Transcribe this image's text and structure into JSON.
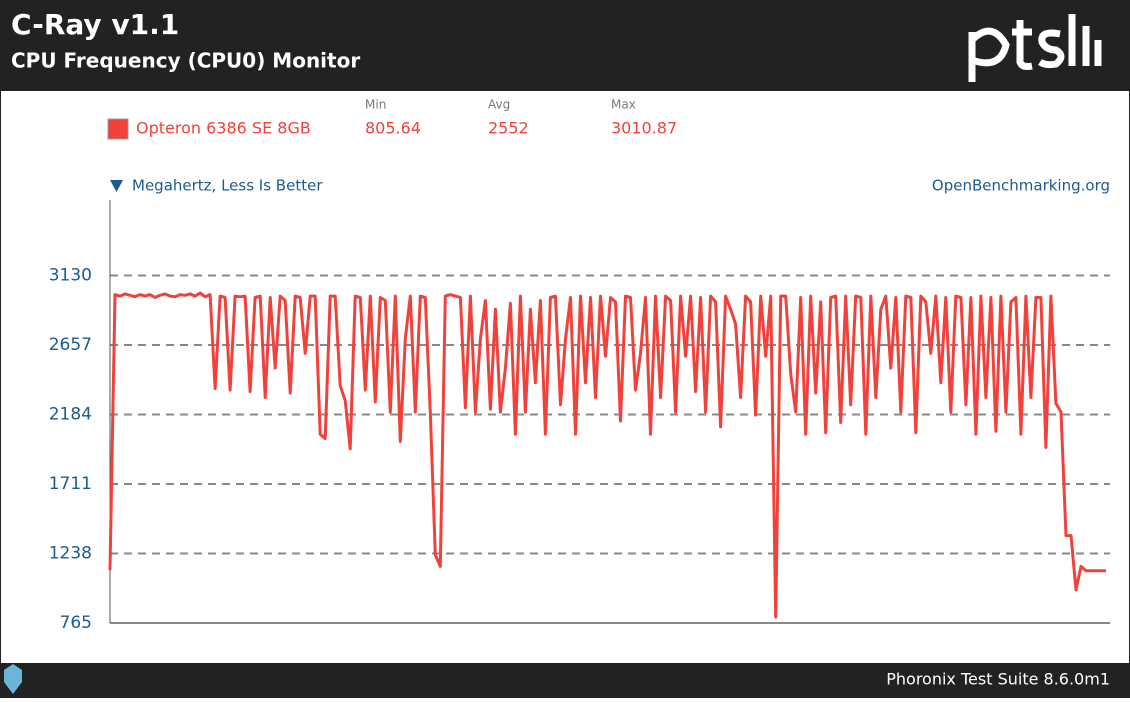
{
  "chart_data": {
    "type": "line",
    "title": "C-Ray v1.1",
    "subtitle": "CPU Frequency (CPU0) Monitor",
    "y_label": "Megahertz, Less Is Better",
    "source": "OpenBenchmarking.org",
    "footer": "Phoronix Test Suite 8.6.0m1",
    "stats_labels": [
      "Min",
      "Avg",
      "Max"
    ],
    "ylim": [
      765,
      3603
    ],
    "yticks": [
      765,
      1238,
      1711,
      2184,
      2657,
      3130
    ],
    "grid": true,
    "series": [
      {
        "name": "Opteron 6386 SE 8GB",
        "color": "#f0413b",
        "stats": [
          805.64,
          2552,
          3010.87
        ],
        "values": [
          1126,
          3000,
          2990,
          3005,
          2995,
          2985,
          3000,
          2990,
          3000,
          2980,
          2995,
          3005,
          2990,
          2985,
          3000,
          2995,
          3005,
          2990,
          3010.87,
          2985,
          3000,
          2360,
          2990,
          2980,
          2350,
          2990,
          2985,
          2990,
          2340,
          2980,
          2990,
          2300,
          2980,
          2500,
          2990,
          2960,
          2330,
          2990,
          2980,
          2600,
          2990,
          2990,
          2050,
          2020,
          2990,
          2990,
          2380,
          2280,
          1950,
          2990,
          2980,
          2350,
          2990,
          2270,
          2980,
          2960,
          2200,
          2990,
          2000,
          2700,
          2990,
          2200,
          2990,
          2980,
          2200,
          1230,
          1150,
          2990,
          3000,
          2990,
          2980,
          2230,
          2990,
          2200,
          2700,
          2960,
          2220,
          2900,
          2200,
          2500,
          2940,
          2050,
          2990,
          2200,
          2900,
          2400,
          2960,
          2050,
          2980,
          2990,
          2250,
          2700,
          2980,
          2050,
          2990,
          2400,
          2980,
          2300,
          2990,
          2580,
          2980,
          2950,
          2140,
          2990,
          2980,
          2350,
          2600,
          2980,
          2050,
          2990,
          2300,
          2990,
          2960,
          2200,
          2990,
          2580,
          2990,
          2340,
          2980,
          2200,
          2990,
          2950,
          2100,
          2990,
          2900,
          2800,
          2300,
          2990,
          2950,
          2180,
          2990,
          2580,
          2990,
          805.64,
          2990,
          2990,
          2460,
          2200,
          2980,
          2050,
          2990,
          2330,
          2950,
          2060,
          2980,
          2990,
          2130,
          2990,
          2250,
          2990,
          2980,
          2050,
          2990,
          2300,
          2900,
          2990,
          2500,
          2980,
          2200,
          2990,
          2980,
          2060,
          2990,
          2950,
          2600,
          2990,
          2400,
          2980,
          2200,
          2990,
          2980,
          2250,
          2980,
          2050,
          2990,
          2300,
          2980,
          2070,
          2990,
          2200,
          2950,
          2980,
          2050,
          2990,
          2300,
          2980,
          2980,
          1960,
          2990,
          2260,
          2200,
          1360,
          1360,
          990,
          1150,
          1120,
          1120,
          1120,
          1120,
          1120
        ]
      }
    ]
  }
}
